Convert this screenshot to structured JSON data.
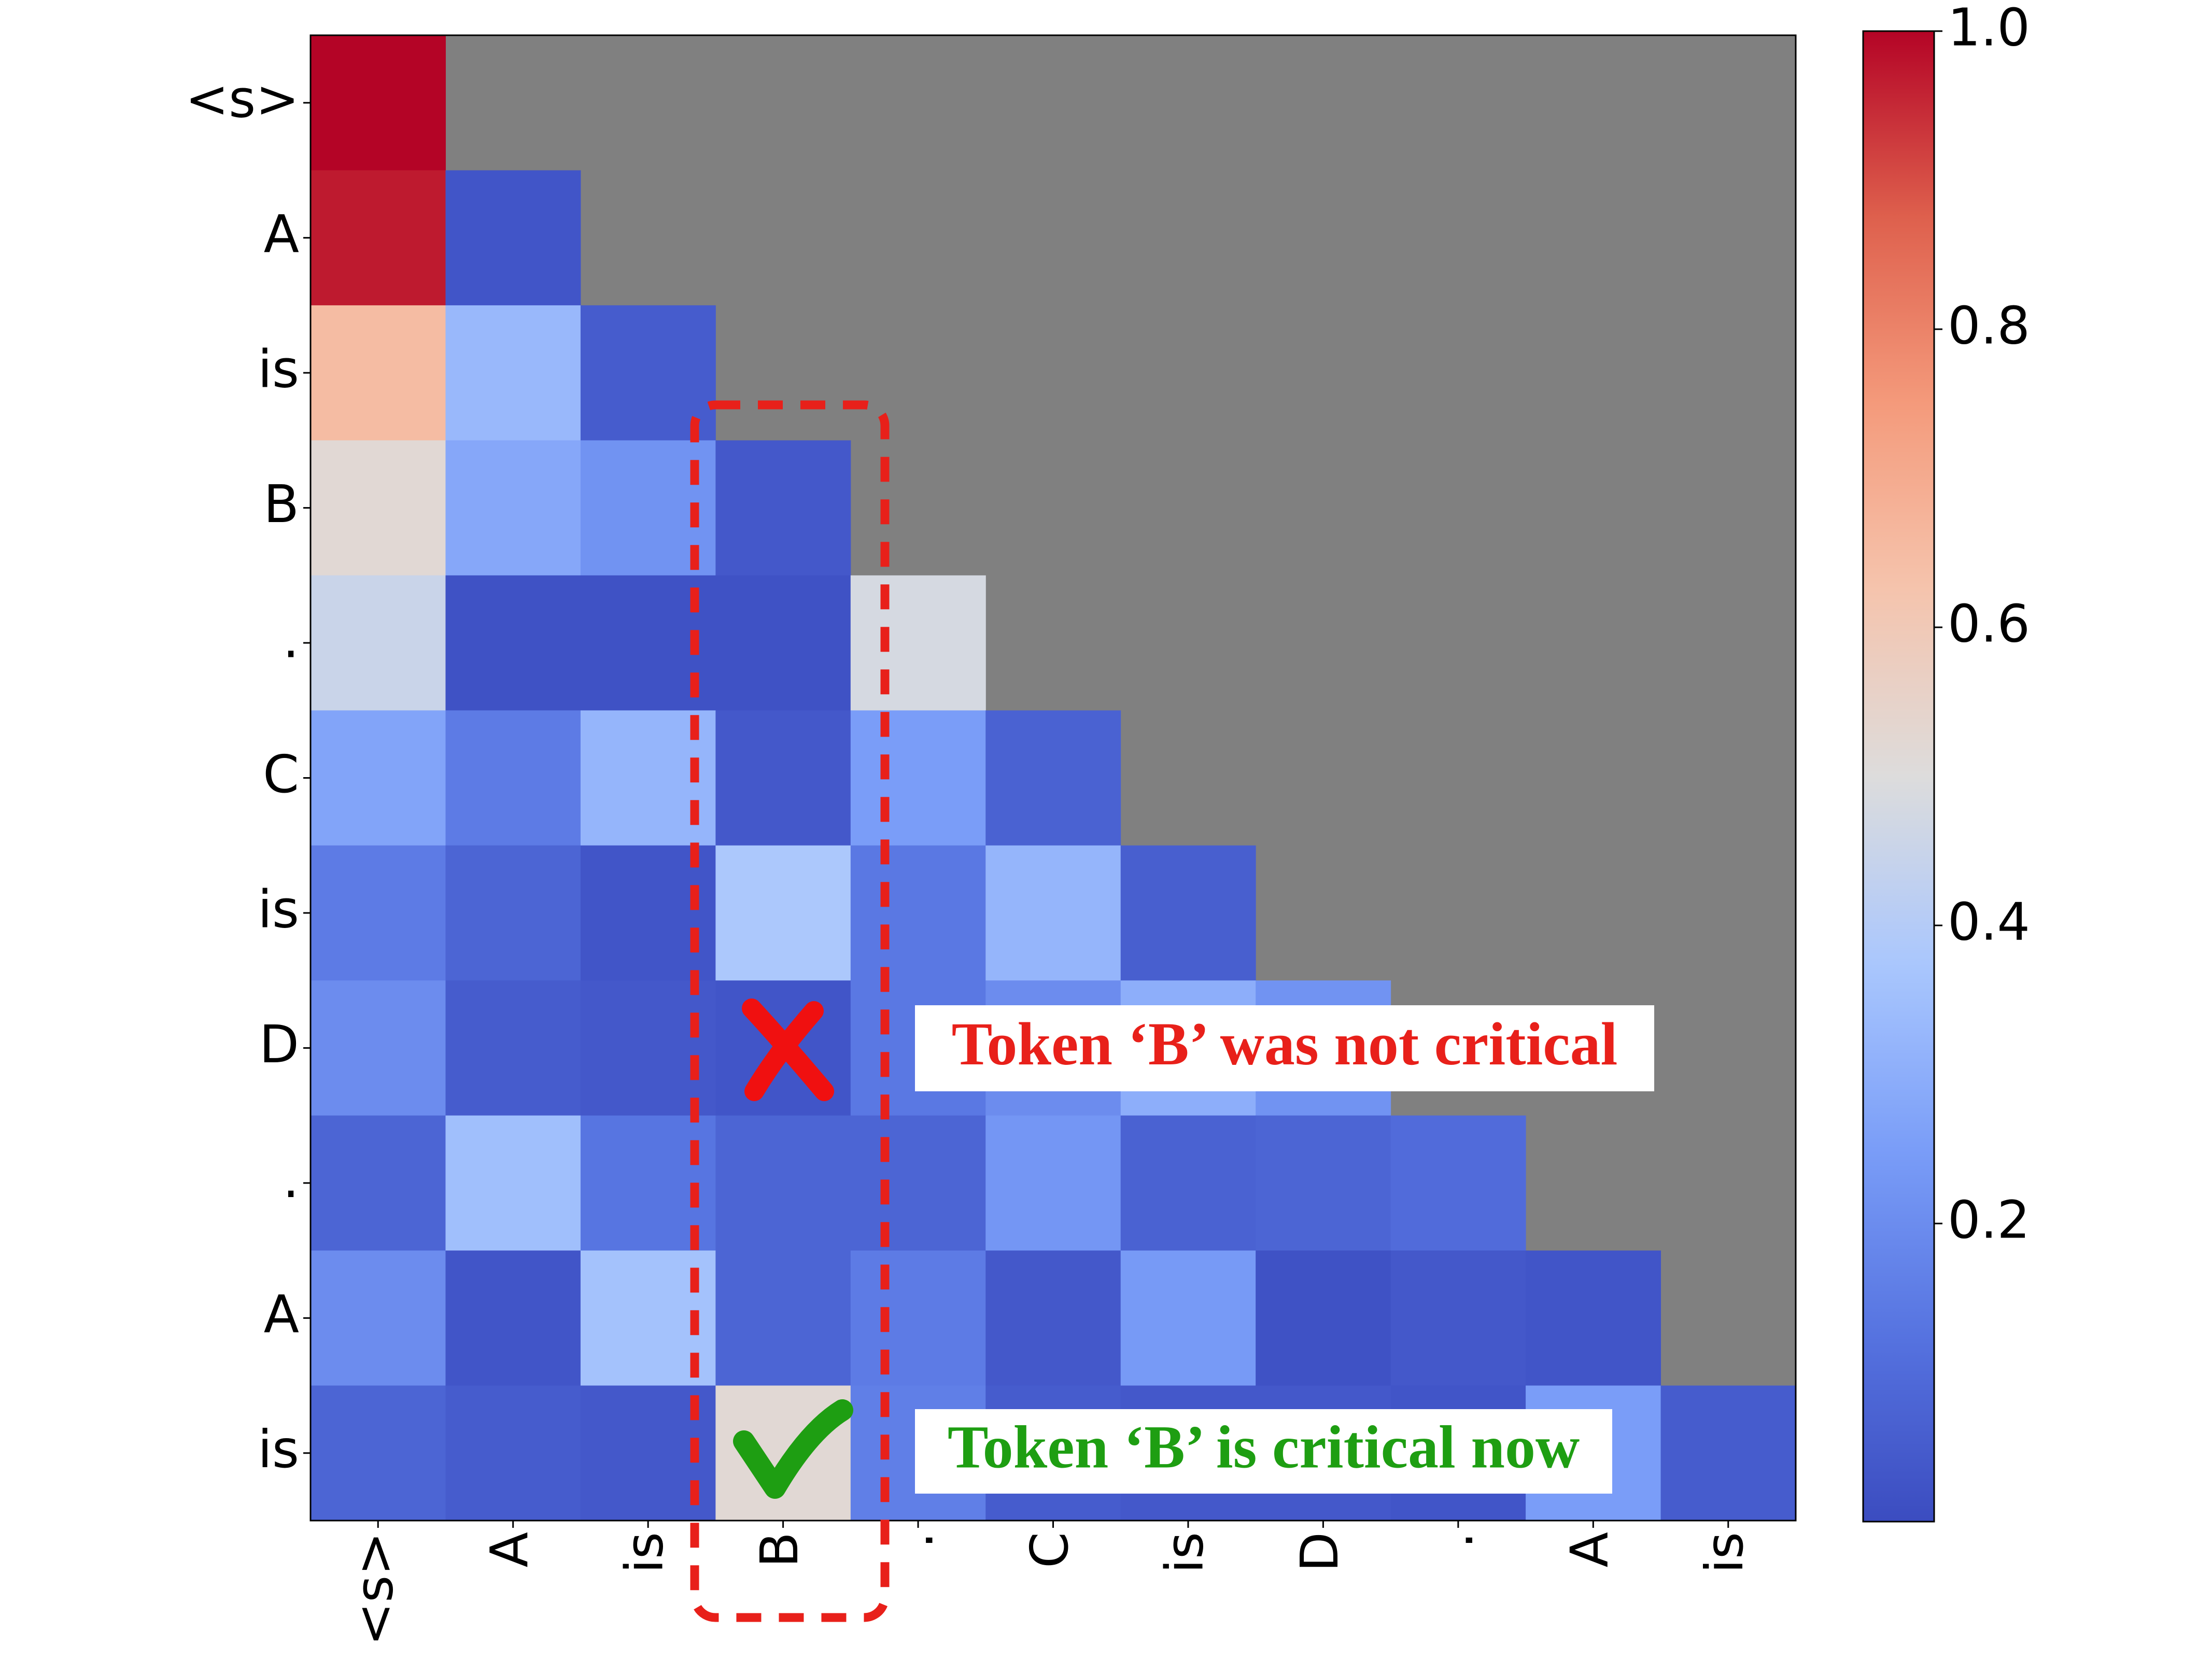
{
  "chart_data": {
    "type": "heatmap",
    "x": [
      "<s>",
      "A",
      "is",
      "B",
      ".",
      "C",
      "is",
      "D",
      ".",
      "A",
      "is"
    ],
    "y": [
      "<s>",
      "A",
      "is",
      "B",
      ".",
      "C",
      "is",
      "D",
      ".",
      "A",
      "is"
    ],
    "values": [
      [
        1.0,
        null,
        null,
        null,
        null,
        null,
        null,
        null,
        null,
        null,
        null
      ],
      [
        0.97,
        0.03,
        null,
        null,
        null,
        null,
        null,
        null,
        null,
        null,
        null
      ],
      [
        0.65,
        0.33,
        0.05,
        null,
        null,
        null,
        null,
        null,
        null,
        null,
        null
      ],
      [
        0.52,
        0.28,
        0.22,
        0.04,
        null,
        null,
        null,
        null,
        null,
        null,
        null
      ],
      [
        0.45,
        0.02,
        0.02,
        0.02,
        0.48,
        null,
        null,
        null,
        null,
        null,
        null
      ],
      [
        0.27,
        0.15,
        0.32,
        0.04,
        0.25,
        0.07,
        null,
        null,
        null,
        null,
        null
      ],
      [
        0.15,
        0.08,
        0.03,
        0.38,
        0.14,
        0.32,
        0.06,
        null,
        null,
        null,
        null
      ],
      [
        0.2,
        0.05,
        0.04,
        0.03,
        0.14,
        0.2,
        0.3,
        0.22,
        null,
        null,
        null
      ],
      [
        0.08,
        0.35,
        0.13,
        0.08,
        0.08,
        0.23,
        0.07,
        0.08,
        0.1,
        null,
        null
      ],
      [
        0.2,
        0.03,
        0.36,
        0.08,
        0.15,
        0.04,
        0.24,
        0.02,
        0.04,
        0.03,
        null
      ],
      [
        0.08,
        0.05,
        0.04,
        0.52,
        0.16,
        0.05,
        0.04,
        0.04,
        0.03,
        0.25,
        0.05
      ]
    ],
    "colormap": "coolwarm",
    "mask_color": "#808080",
    "clim": [
      0,
      1.0
    ],
    "cticks": [
      0.2,
      0.4,
      0.6,
      0.8,
      {
        "value": 1.0,
        "label": "1.0"
      }
    ],
    "annotations": [
      {
        "text": "Token ‘B’ was not critical",
        "color": "#e8201a"
      },
      {
        "text": "Token ‘B’ is critical now",
        "color": "#1e9e12"
      }
    ]
  }
}
